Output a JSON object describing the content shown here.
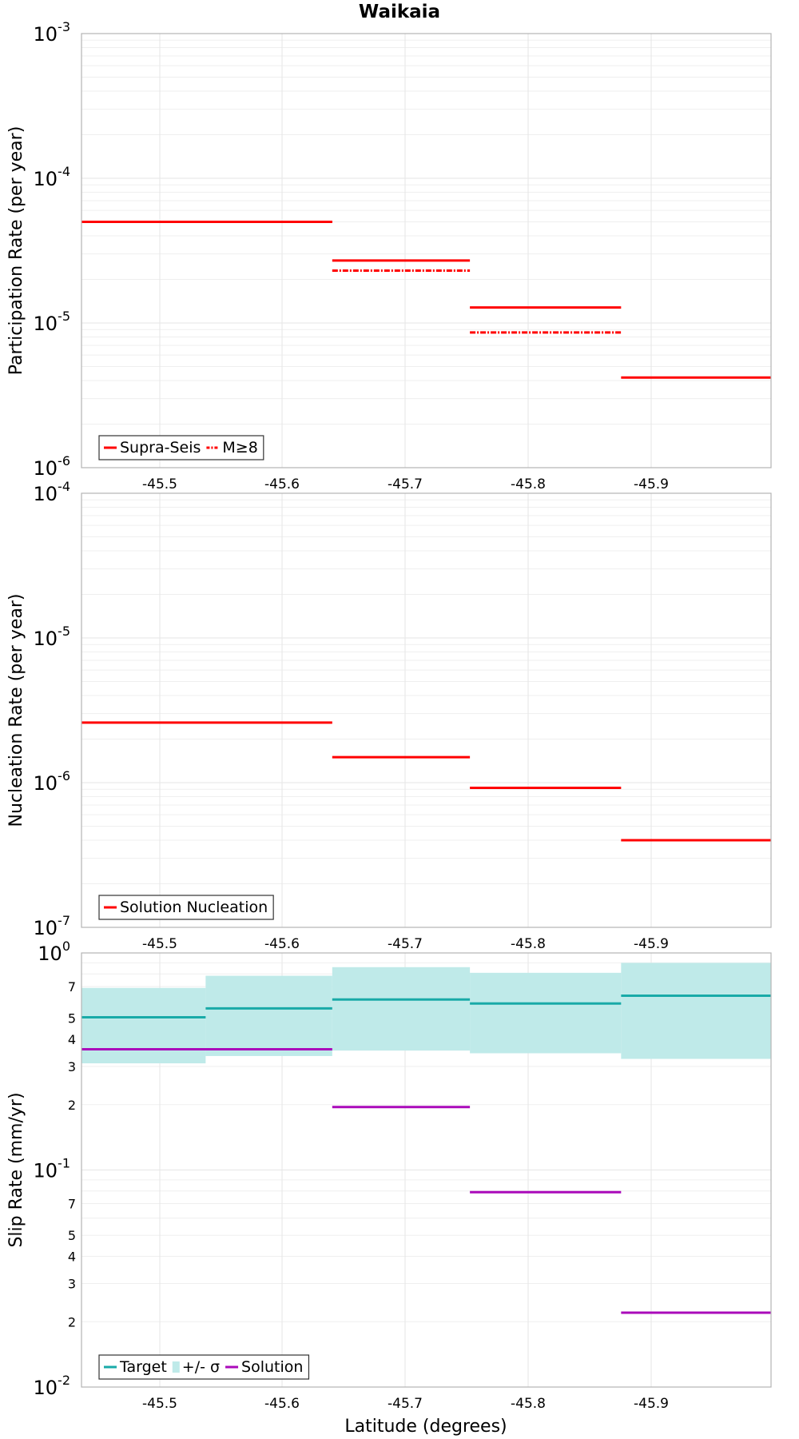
{
  "chart_data": [
    {
      "type": "line",
      "title": "Waikaia",
      "ylabel": "Participation Rate (per year)",
      "xlabel": "",
      "yscale": "log",
      "ylim": [
        1e-06,
        0.001
      ],
      "xlim": [
        -45.437,
        -45.998
      ],
      "x_ticks": [
        "-45.5",
        "-45.6",
        "-45.7",
        "-45.8",
        "-45.9"
      ],
      "y_ticks": [
        {
          "base": "10",
          "exp": "-3"
        },
        {
          "base": "10",
          "exp": "-4"
        },
        {
          "base": "10",
          "exp": "-5"
        },
        {
          "base": "10",
          "exp": "-6"
        }
      ],
      "grid": true,
      "legend": {
        "position": "bottom-left",
        "entries": [
          "Supra-Seis",
          "M≥8"
        ]
      },
      "series": [
        {
          "name": "Supra-Seis",
          "color": "#ff0000",
          "style": "solid",
          "segments": [
            {
              "x": [
                -45.437,
                -45.641
              ],
              "y": 5e-05
            },
            {
              "x": [
                -45.641,
                -45.753
              ],
              "y": 2.7e-05
            },
            {
              "x": [
                -45.753,
                -45.876
              ],
              "y": 1.28e-05
            },
            {
              "x": [
                -45.876,
                -45.998
              ],
              "y": 4.2e-06
            }
          ]
        },
        {
          "name": "M≥8",
          "color": "#ff0000",
          "style": "dashdot",
          "segments": [
            {
              "x": [
                -45.437,
                -45.641
              ],
              "y": 5e-05
            },
            {
              "x": [
                -45.641,
                -45.753
              ],
              "y": 2.3e-05
            },
            {
              "x": [
                -45.753,
                -45.876
              ],
              "y": 8.6e-06
            }
          ]
        }
      ]
    },
    {
      "type": "line",
      "title": "",
      "ylabel": "Nucleation Rate (per year)",
      "xlabel": "",
      "yscale": "log",
      "ylim": [
        1e-07,
        0.0001
      ],
      "xlim": [
        -45.437,
        -45.998
      ],
      "x_ticks": [
        "-45.5",
        "-45.6",
        "-45.7",
        "-45.8",
        "-45.9"
      ],
      "y_ticks": [
        {
          "base": "10",
          "exp": "-4"
        },
        {
          "base": "10",
          "exp": "-5"
        },
        {
          "base": "10",
          "exp": "-6"
        },
        {
          "base": "10",
          "exp": "-7"
        }
      ],
      "grid": true,
      "legend": {
        "position": "bottom-left",
        "entries": [
          "Solution Nucleation"
        ]
      },
      "series": [
        {
          "name": "Solution Nucleation",
          "color": "#ff0000",
          "style": "solid",
          "segments": [
            {
              "x": [
                -45.437,
                -45.641
              ],
              "y": 2.6e-06
            },
            {
              "x": [
                -45.641,
                -45.753
              ],
              "y": 1.5e-06
            },
            {
              "x": [
                -45.753,
                -45.876
              ],
              "y": 9.2e-07
            },
            {
              "x": [
                -45.876,
                -45.998
              ],
              "y": 4e-07
            }
          ]
        }
      ]
    },
    {
      "type": "line",
      "title": "",
      "ylabel": "Slip Rate (mm/yr)",
      "xlabel": "Latitude (degrees)",
      "yscale": "log",
      "ylim": [
        0.01,
        1.0
      ],
      "xlim": [
        -45.437,
        -45.998
      ],
      "x_ticks": [
        "-45.5",
        "-45.6",
        "-45.7",
        "-45.8",
        "-45.9"
      ],
      "y_ticks": [
        {
          "base": "10",
          "exp": "0"
        },
        {
          "base": "10",
          "exp": "-1"
        },
        {
          "base": "10",
          "exp": "-2"
        }
      ],
      "y_minor_ticks": [
        {
          "label": "7",
          "value": 0.7
        },
        {
          "label": "5",
          "value": 0.5
        },
        {
          "label": "4",
          "value": 0.4
        },
        {
          "label": "3",
          "value": 0.3
        },
        {
          "label": "2",
          "value": 0.2
        },
        {
          "label": "7",
          "value": 0.07
        },
        {
          "label": "5",
          "value": 0.05
        },
        {
          "label": "4",
          "value": 0.04
        },
        {
          "label": "3",
          "value": 0.03
        },
        {
          "label": "2",
          "value": 0.02
        }
      ],
      "grid": true,
      "legend": {
        "position": "bottom-left",
        "entries": [
          "Target",
          "+/- σ",
          "Solution"
        ]
      },
      "bands": [
        {
          "name": "+/- σ",
          "color": "#bfeae9",
          "segments": [
            {
              "x": [
                -45.437,
                -45.538
              ],
              "low": 0.31,
              "high": 0.69
            },
            {
              "x": [
                -45.538,
                -45.641
              ],
              "low": 0.335,
              "high": 0.785
            },
            {
              "x": [
                -45.641,
                -45.753
              ],
              "low": 0.355,
              "high": 0.86
            },
            {
              "x": [
                -45.753,
                -45.876
              ],
              "low": 0.345,
              "high": 0.81
            },
            {
              "x": [
                -45.876,
                -45.998
              ],
              "low": 0.325,
              "high": 0.9
            }
          ]
        }
      ],
      "series": [
        {
          "name": "Target",
          "color": "#19aaa8",
          "style": "solid",
          "segments": [
            {
              "x": [
                -45.437,
                -45.538
              ],
              "y": 0.505
            },
            {
              "x": [
                -45.538,
                -45.641
              ],
              "y": 0.555
            },
            {
              "x": [
                -45.641,
                -45.753
              ],
              "y": 0.61
            },
            {
              "x": [
                -45.753,
                -45.876
              ],
              "y": 0.585
            },
            {
              "x": [
                -45.876,
                -45.998
              ],
              "y": 0.635
            }
          ]
        },
        {
          "name": "Solution",
          "color": "#aa0aba",
          "style": "solid",
          "segments": [
            {
              "x": [
                -45.437,
                -45.641
              ],
              "y": 0.36
            },
            {
              "x": [
                -45.641,
                -45.753
              ],
              "y": 0.195
            },
            {
              "x": [
                -45.753,
                -45.876
              ],
              "y": 0.079
            },
            {
              "x": [
                -45.876,
                -45.998
              ],
              "y": 0.022
            }
          ]
        }
      ]
    }
  ]
}
